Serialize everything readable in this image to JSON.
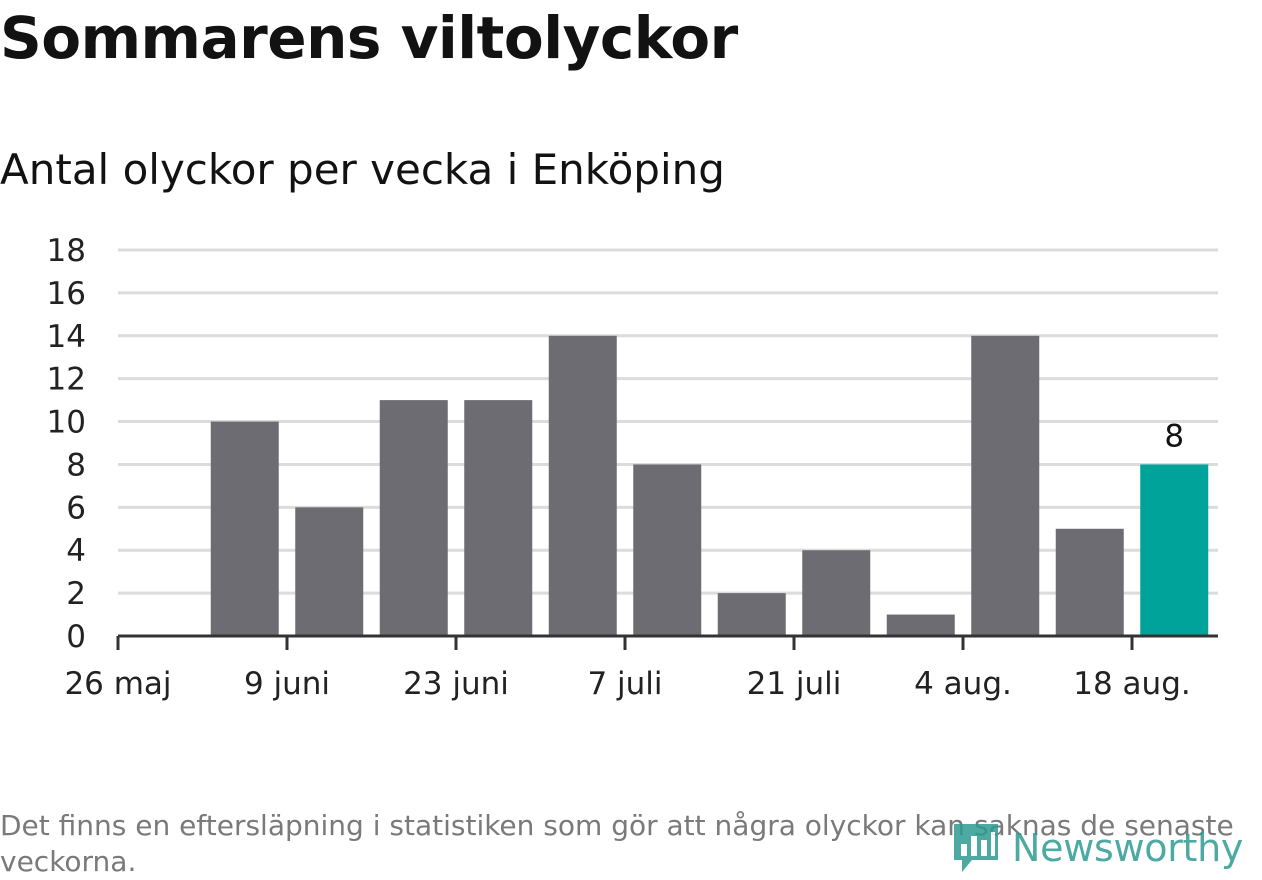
{
  "title": "Sommarens viltolyckor",
  "subtitle": "Antal olyckor per vecka i Enköping",
  "footnote": "Det finns en eftersläpning i statistiken som gör att några olyckor kan saknas de senaste veckorna.",
  "brand": {
    "name": "Newsworthy",
    "icon": "newsworthy-logo-icon",
    "color": "#2e9c92"
  },
  "colors": {
    "bar": "#6d6c73",
    "highlight": "#00a39a",
    "grid": "#dcdcdc",
    "axis": "#333333"
  },
  "chart_data": {
    "type": "bar",
    "title": "Sommarens viltolyckor",
    "subtitle": "Antal olyckor per vecka i Enköping",
    "xlabel": "",
    "ylabel": "",
    "ylim": [
      0,
      18
    ],
    "yticks": [
      0,
      2,
      4,
      6,
      8,
      10,
      12,
      14,
      16,
      18
    ],
    "grid": true,
    "legend": "none",
    "x_tick_labels": [
      "26 maj",
      "9 juni",
      "23 juni",
      "7 juli",
      "21 juli",
      "4 aug.",
      "18 aug."
    ],
    "values": [
      10,
      6,
      11,
      11,
      14,
      8,
      2,
      4,
      1,
      14,
      5,
      8
    ],
    "highlight_index": 11,
    "highlight_label": "8"
  }
}
